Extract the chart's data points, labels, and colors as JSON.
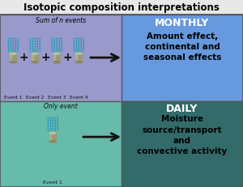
{
  "title": "Isotopic composition interpretations",
  "title_bg": "#e8e8e8",
  "top_left_bg": "#9999cc",
  "top_right_bg": "#6699dd",
  "bottom_left_bg": "#66bbaa",
  "bottom_right_bg": "#336b6b",
  "top_label": "Sum of n events",
  "bottom_label": "Only event",
  "monthly_label": "MONTHLY",
  "daily_label": "DAILY",
  "monthly_text": "Amount effect,\ncontinental and\nseasonal effects",
  "daily_text": "Moisture\nsource/transport\nand\nconvective activity",
  "event_labels_top": [
    "Event 1",
    "Event 2",
    "Event 3",
    "Event 4"
  ],
  "event_label_bottom": "Event 1",
  "plus_color": "#111111",
  "arrow_color": "#111111",
  "title_color": "#000000",
  "monthly_label_color": "#ffffff",
  "daily_label_color": "#ffffff",
  "monthly_text_color": "#000000",
  "daily_text_color": "#000000",
  "rain_color": "#3399bb",
  "gauge_body_color": "#999977",
  "gauge_top_color": "#44aa99",
  "border_color": "#555555",
  "fig_width": 3.0,
  "fig_height": 2.31,
  "dpi": 100
}
